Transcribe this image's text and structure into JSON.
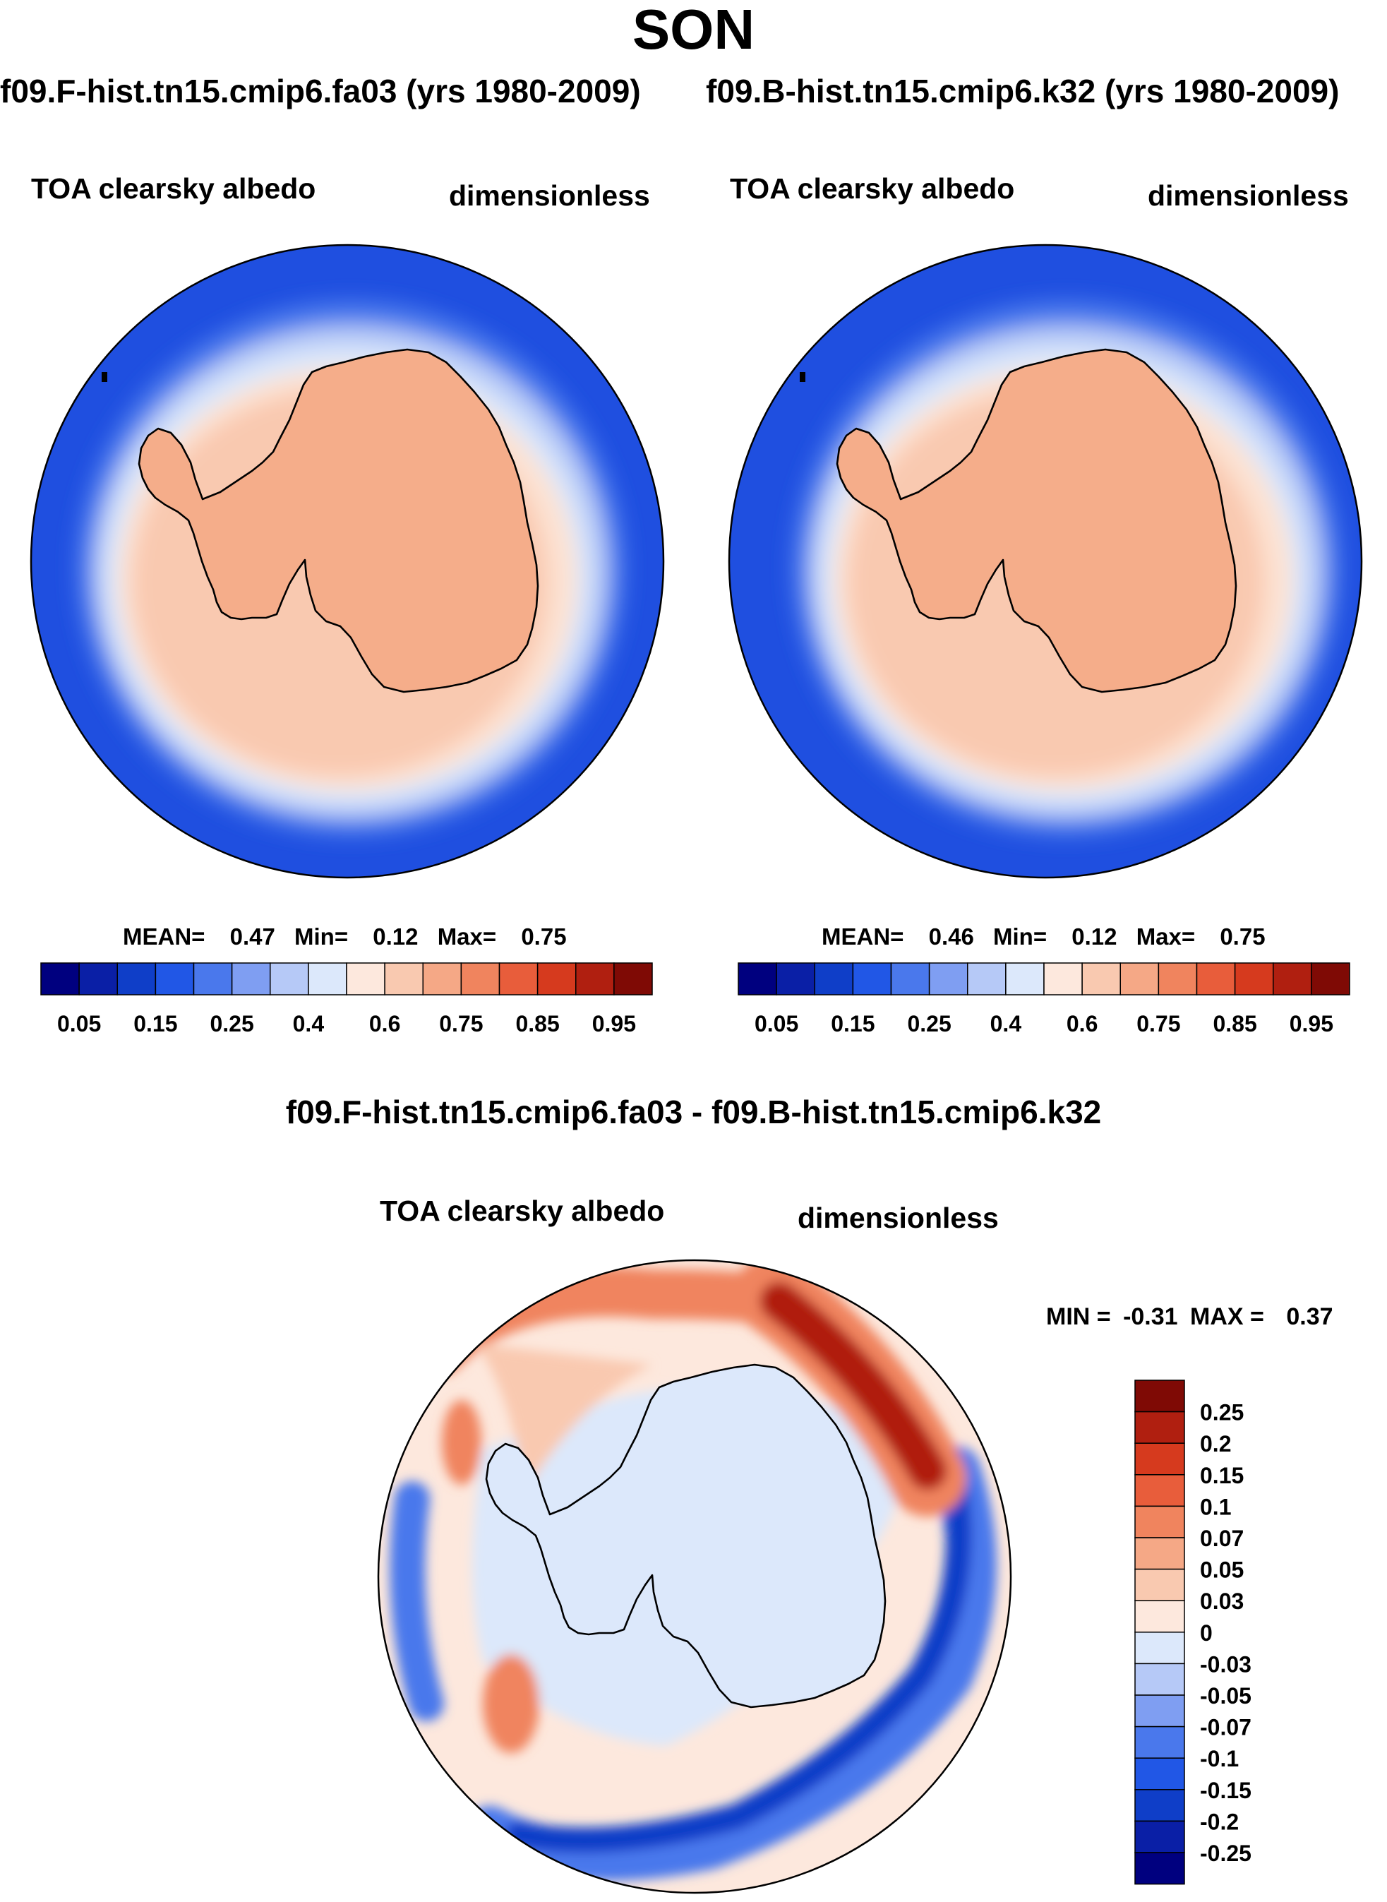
{
  "title": "SON",
  "case1_header": "f09.F-hist.tn15.cmip6.fa03 (yrs 1980-2009)",
  "case2_header": "f09.B-hist.tn15.cmip6.k32 (yrs 1980-2009)",
  "diff_header": "f09.F-hist.tn15.cmip6.fa03 - f09.B-hist.tn15.cmip6.k32",
  "panels": [
    {
      "variable": "TOA clearsky albedo",
      "units": "dimensionless",
      "stats": {
        "mean_label": "MEAN=",
        "mean": "0.47",
        "min_label": "Min=",
        "min": "0.12",
        "max_label": "Max=",
        "max": "0.75"
      }
    },
    {
      "variable": "TOA clearsky albedo",
      "units": "dimensionless",
      "stats": {
        "mean_label": "MEAN=",
        "mean": "0.46",
        "min_label": "Min=",
        "min": "0.12",
        "max_label": "Max=",
        "max": "0.75"
      }
    },
    {
      "variable": "TOA clearsky albedo",
      "units": "dimensionless",
      "stats": {
        "min_label": "MIN =",
        "min": "-0.31",
        "max_label": "MAX =",
        "max": "0.37"
      }
    }
  ],
  "colorbar_abs": {
    "colors": [
      "#00007f",
      "#0a1fa6",
      "#0f3ec8",
      "#2157e6",
      "#4a78ec",
      "#7f9ef2",
      "#b6c9f7",
      "#dce8fb",
      "#fde8dd",
      "#f9c9b0",
      "#f5a886",
      "#f0845e",
      "#e85d3b",
      "#d63a1e",
      "#b01f10",
      "#7f0a05"
    ],
    "labels": [
      "0.05",
      "0.15",
      "0.25",
      "0.4",
      "0.6",
      "0.75",
      "0.85",
      "0.95"
    ]
  },
  "colorbar_diff": {
    "colors": [
      "#7f0a05",
      "#b01f10",
      "#d63a1e",
      "#e85d3b",
      "#f0845e",
      "#f5a886",
      "#f9c9b0",
      "#fde8dd",
      "#dce8fb",
      "#b6c9f7",
      "#7f9ef2",
      "#4a78ec",
      "#2157e6",
      "#0f3ec8",
      "#0a1fa6",
      "#00007f"
    ],
    "labels": [
      "0.25",
      "0.2",
      "0.15",
      "0.1",
      "0.07",
      "0.05",
      "0.03",
      "0",
      "-0.03",
      "-0.05",
      "-0.07",
      "-0.1",
      "-0.15",
      "-0.2",
      "-0.25"
    ]
  },
  "map_colors": {
    "open_ocean": "#1f4fe0",
    "ocean_mid": "#4a78ec",
    "ocean_light": "#b6c9f7",
    "sea_ice_edge": "#dce8fb",
    "sea_ice": "#fde2d2",
    "sea_ice_dense": "#f9c9b0",
    "continent": "#f5ad8a",
    "diff_zero": "#fde8dd",
    "diff_neg_light": "#dce8fb",
    "diff_neg": "#4a78ec",
    "diff_neg_strong": "#0f3ec8",
    "diff_pos": "#f0845e",
    "diff_pos_strong": "#b01f10"
  }
}
